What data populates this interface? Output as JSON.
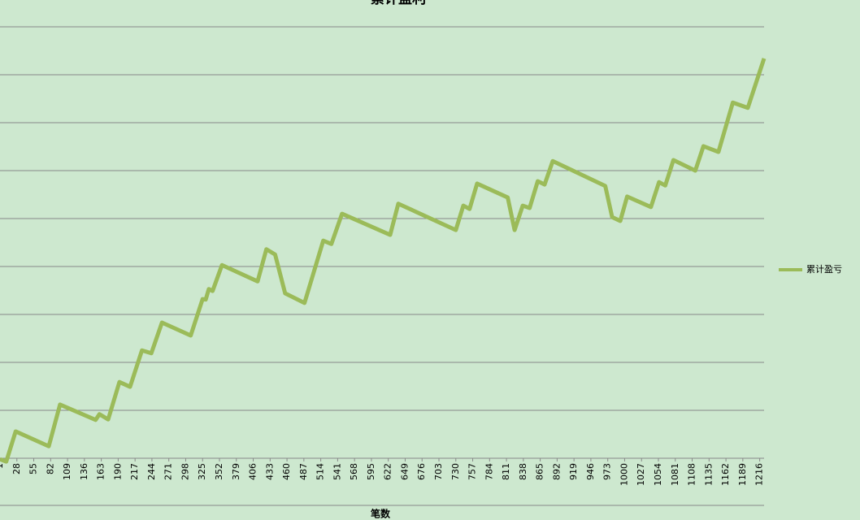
{
  "chart_data": {
    "type": "line",
    "title": "累计盈利",
    "x_label": "笔数",
    "x": [
      1,
      11,
      26,
      79,
      97,
      154,
      160,
      174,
      192,
      209,
      228,
      243,
      260,
      306,
      325,
      330,
      335,
      341,
      356,
      413,
      427,
      441,
      457,
      488,
      518,
      531,
      548,
      625,
      638,
      730,
      742,
      752,
      764,
      813,
      824,
      837,
      848,
      861,
      872,
      885,
      969,
      980,
      993,
      1004,
      1042,
      1055,
      1065,
      1078,
      1113,
      1126,
      1150,
      1173,
      1197,
      1223
    ],
    "series": [
      {
        "name": "累计盈亏",
        "color": "#9bbb59",
        "values": [
          -0.02,
          -0.07,
          0.56,
          0.25,
          1.12,
          0.8,
          0.92,
          0.81,
          1.59,
          1.49,
          2.25,
          2.19,
          2.83,
          2.56,
          3.32,
          3.31,
          3.53,
          3.49,
          4.03,
          3.69,
          4.36,
          4.25,
          3.44,
          3.24,
          4.54,
          4.47,
          5.1,
          4.66,
          5.31,
          4.76,
          5.27,
          5.2,
          5.73,
          5.44,
          4.76,
          5.27,
          5.22,
          5.78,
          5.71,
          6.2,
          5.68,
          5.03,
          4.95,
          5.46,
          5.24,
          5.76,
          5.69,
          6.22,
          6,
          6.51,
          6.39,
          7.42,
          7.31,
          8.34
        ]
      }
    ],
    "xlim": [
      1,
      1223
    ],
    "xticks": [
      1,
      28,
      55,
      82,
      109,
      136,
      163,
      190,
      217,
      244,
      271,
      298,
      325,
      352,
      379,
      406,
      433,
      460,
      487,
      514,
      541,
      568,
      595,
      622,
      649,
      676,
      703,
      730,
      757,
      784,
      811,
      838,
      865,
      892,
      919,
      946,
      973,
      1000,
      1027,
      1054,
      1081,
      1108,
      1135,
      1162,
      1189,
      1216
    ],
    "ylim": [
      0,
      9
    ],
    "yticks": [
      0,
      1,
      2,
      3,
      4,
      5,
      6,
      7,
      8,
      9
    ],
    "grid": true,
    "legend": "right"
  }
}
